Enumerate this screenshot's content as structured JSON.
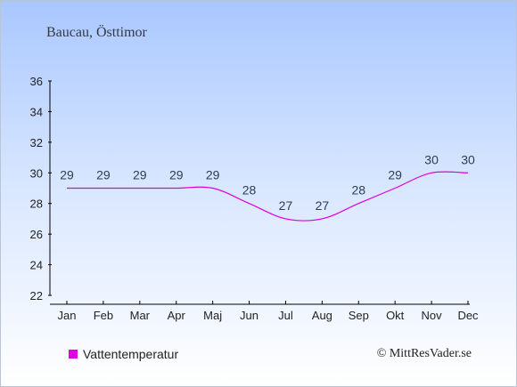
{
  "location": "Baucau, Östtimor",
  "credit": "© MittResVader.se",
  "chart_data": {
    "type": "line",
    "categories": [
      "Jan",
      "Feb",
      "Mar",
      "Apr",
      "Maj",
      "Jun",
      "Jul",
      "Aug",
      "Sep",
      "Okt",
      "Nov",
      "Dec"
    ],
    "series": [
      {
        "name": "Vattentemperatur",
        "values": [
          29,
          29,
          29,
          29,
          29,
          28,
          27,
          27,
          28,
          29,
          30,
          30
        ],
        "color": "#dd00dd"
      }
    ],
    "ylim": [
      22,
      36
    ],
    "yticks": [
      22,
      24,
      26,
      28,
      30,
      32,
      34,
      36
    ],
    "legend_position": "bottom-left",
    "grid": false
  }
}
